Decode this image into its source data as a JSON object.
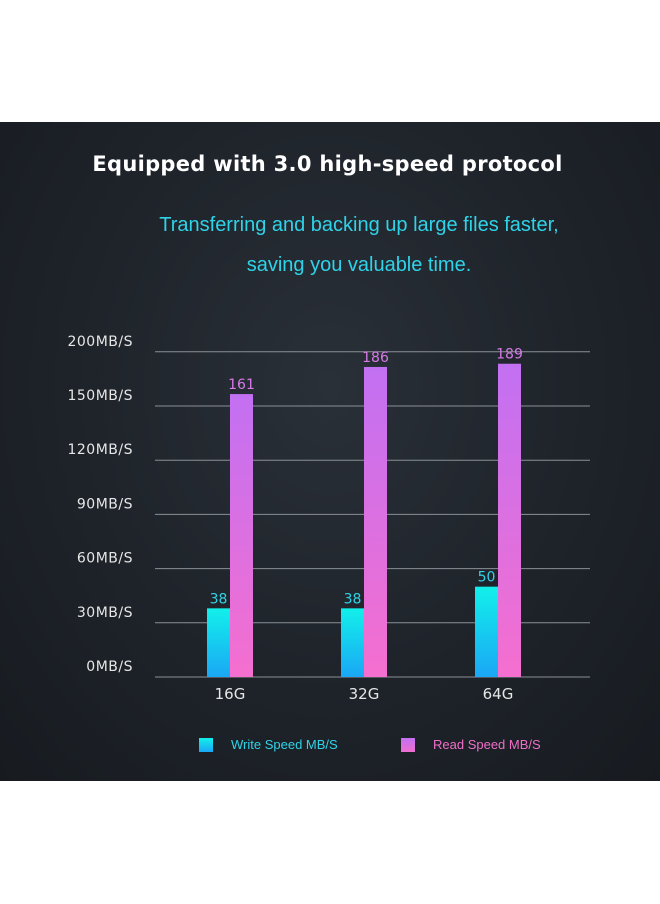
{
  "header": {
    "title": "Equipped with 3.0 high-speed protocol",
    "subtitle_line1": "Transferring and backing up large files faster,",
    "subtitle_line2": "saving you valuable time."
  },
  "colors": {
    "write_top": "#12f0ea",
    "write_bottom": "#1aa7f5",
    "read_top": "#c270f2",
    "read_bottom": "#ee6fd0",
    "write_label": "#2fd3e8",
    "read_label": "#d67ae8",
    "axis_text": "#e6e6e6",
    "gridline": "#8a8f96"
  },
  "chart_data": {
    "type": "bar",
    "categories": [
      "16G",
      "32G",
      "64G"
    ],
    "series": [
      {
        "name": "Write Speed MB/S",
        "values": [
          38,
          38,
          50
        ]
      },
      {
        "name": "Read Speed MB/S",
        "values": [
          161,
          186,
          189
        ]
      }
    ],
    "y_ticks": [
      {
        "value": 0,
        "label": "0MB/S"
      },
      {
        "value": 30,
        "label": "30MB/S"
      },
      {
        "value": 60,
        "label": "60MB/S"
      },
      {
        "value": 90,
        "label": "90MB/S"
      },
      {
        "value": 120,
        "label": "120MB/S"
      },
      {
        "value": 150,
        "label": "150MB/S"
      },
      {
        "value": 200,
        "label": "200MB/S"
      }
    ],
    "grid": true,
    "legend_position": "bottom"
  }
}
